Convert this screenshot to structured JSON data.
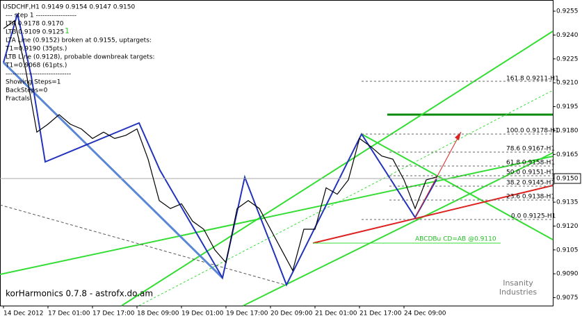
{
  "chart_data": {
    "type": "line",
    "title": "USDCHF,H1  0.9149 0.9154 0.9147 0.9150",
    "info_lines": [
      "---   step 1  ------------------",
      "LTA  0.9178  0.9170",
      "LTB  0.9109  0.9125",
      "LTA  Line (0.9152) broken at 0.9155, uptargets:",
      "T1=0.9190 (35pts.)",
      "LTB  Line (0.9128), probable downbreak targets:",
      "T1=0.9068 (61pts.)",
      "-----------------------------",
      "Showing Steps=1",
      "BackSteps=0",
      "Fractals"
    ],
    "step_marker": "1",
    "footer": "korHarmonics 0.7.8 - astrofx.do.am",
    "watermark": [
      "Insanity",
      "Industries"
    ],
    "fib_levels": [
      "161.8 0.9211-H1",
      "100.0 0.9178-H1",
      "78.6 0.9167-H1",
      "61.8 0.9158-H1",
      "50.0 0.9151-H1",
      "38.2 0.9145-H1",
      "23.6 0.9138-H1",
      "0.0 0.9125-H1"
    ],
    "pattern_label": "ABCDBu CD=AB  @0.9110",
    "current_price_label": "0.9150",
    "series": [
      {
        "name": "USDCHF",
        "color": "#000000",
        "x": [
          0,
          4,
          8,
          12,
          16,
          20,
          24,
          28,
          32,
          36,
          40,
          44,
          48,
          52,
          56,
          60,
          64,
          68,
          72,
          76,
          80,
          84,
          88,
          92,
          96,
          100,
          104,
          108,
          112,
          116,
          120,
          124,
          128,
          132,
          136,
          140,
          144,
          148,
          152,
          156
        ],
        "values": [
          0.9244,
          0.9249,
          0.9218,
          0.9179,
          0.9184,
          0.919,
          0.9184,
          0.9181,
          0.9175,
          0.9179,
          0.9175,
          0.9177,
          0.9181,
          0.9162,
          0.9136,
          0.9131,
          0.9134,
          0.9123,
          0.9118,
          0.9105,
          0.9097,
          0.9131,
          0.9136,
          0.9131,
          0.9118,
          0.9105,
          0.9092,
          0.9118,
          0.9118,
          0.9144,
          0.914,
          0.9149,
          0.9175,
          0.917,
          0.9164,
          0.9162,
          0.9149,
          0.9131,
          0.9149,
          0.9151
        ]
      }
    ],
    "xlim": [
      0,
      197.5
    ],
    "xticks": [
      {
        "value": 0,
        "label": "14 Dec 2012"
      },
      {
        "value": 16,
        "label": "17 Dec 01:00"
      },
      {
        "value": 32,
        "label": "17 Dec 17:00"
      },
      {
        "value": 48,
        "label": "18 Dec 09:00"
      },
      {
        "value": 64,
        "label": "19 Dec 01:00"
      },
      {
        "value": 80,
        "label": "19 Dec 17:00"
      },
      {
        "value": 96,
        "label": "20 Dec 09:00"
      },
      {
        "value": 112,
        "label": "21 Dec 01:00"
      },
      {
        "value": 128,
        "label": "21 Dec 17:00"
      },
      {
        "value": 144,
        "label": "24 Dec 09:00"
      }
    ],
    "ylim": [
      0.907,
      0.9262
    ],
    "yticks": [
      0.9075,
      {
        "value": 0.909,
        "label": "0.9090"
      },
      0.9105,
      {
        "value": 0.912,
        "label": "0.9120"
      },
      0.9135,
      {
        "value": 0.915,
        "label": "0.9150"
      },
      0.9165,
      {
        "value": 0.918,
        "label": "0.9180"
      },
      0.9195,
      {
        "value": 0.921,
        "label": "0.9210"
      },
      0.9225,
      {
        "value": 0.924,
        "label": "0.9240"
      },
      0.9255
    ]
  }
}
